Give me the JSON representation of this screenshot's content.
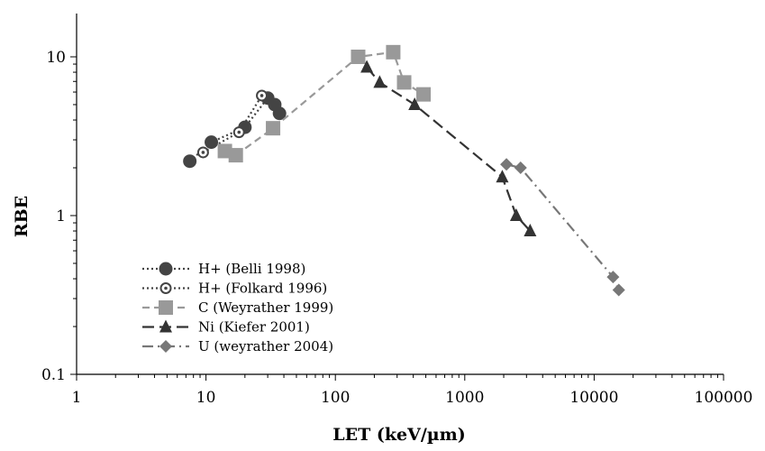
{
  "chart_data": {
    "type": "scatter",
    "xlabel": "LET (keV/µm)",
    "ylabel": "RBE",
    "x_scale": "log",
    "y_scale": "log",
    "xlim": [
      1,
      100000
    ],
    "ylim": [
      0.1,
      20
    ],
    "x_ticks": [
      "1",
      "10",
      "100",
      "1000",
      "10000",
      "100000"
    ],
    "y_ticks": [
      "0.1",
      "1",
      "10"
    ],
    "grid": false,
    "legend_position": "bottom-left",
    "series": [
      {
        "name": "H+ (Belli 1998)",
        "color": "#444444",
        "line": "dotted",
        "marker": "filled-circle",
        "x": [
          7.5,
          11,
          20,
          30,
          34,
          37
        ],
        "y": [
          2.2,
          2.9,
          3.6,
          5.5,
          5.0,
          4.4
        ]
      },
      {
        "name": "H+ (Folkard 1996)",
        "color": "#444444",
        "line": "dotted",
        "marker": "open-circle",
        "x": [
          9.5,
          18,
          27
        ],
        "y": [
          2.5,
          3.35,
          5.7
        ]
      },
      {
        "name": "C (Weyrather 1999)",
        "color": "#999999",
        "line": "dashed",
        "marker": "square",
        "x": [
          14,
          17,
          33,
          150,
          280,
          340,
          480
        ],
        "y": [
          2.55,
          2.4,
          3.55,
          10.0,
          10.7,
          6.9,
          5.8
        ]
      },
      {
        "name": "Ni (Kiefer 2001)",
        "color": "#333333",
        "line": "long-dash",
        "marker": "triangle",
        "x": [
          175,
          220,
          410,
          1950,
          2500,
          3200
        ],
        "y": [
          8.6,
          6.9,
          5.0,
          1.75,
          1.0,
          0.8
        ]
      },
      {
        "name": "U (weyrather 2004)",
        "color": "#777777",
        "line": "dash-dot",
        "marker": "diamond",
        "x": [
          2100,
          2700,
          14000,
          15500
        ],
        "y": [
          2.1,
          2.0,
          0.41,
          0.34
        ]
      }
    ]
  }
}
